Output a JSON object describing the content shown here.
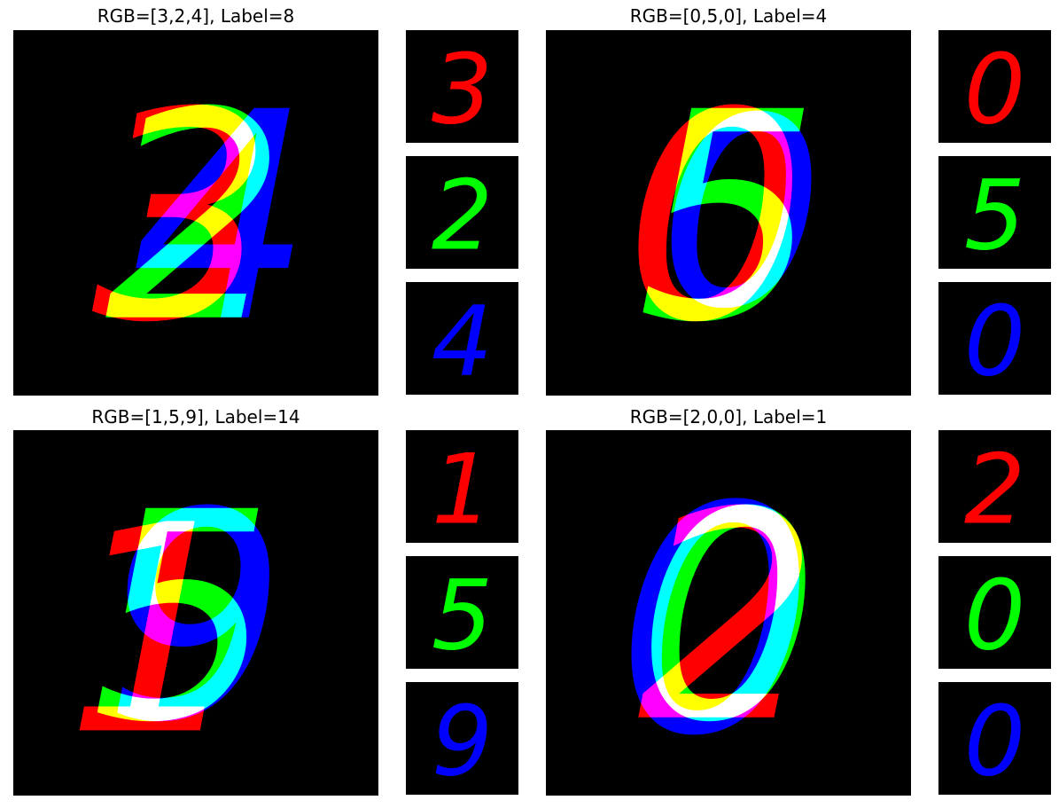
{
  "figure": {
    "panels": [
      {
        "title": "RGB=[3,2,4], Label=8",
        "digits": [
          {
            "value": "3",
            "color": "#ff0000",
            "color_name": "red"
          },
          {
            "value": "2",
            "color": "#00ff00",
            "color_name": "green"
          },
          {
            "value": "4",
            "color": "#0000ff",
            "color_name": "blue"
          }
        ]
      },
      {
        "title": "RGB=[0,5,0], Label=4",
        "digits": [
          {
            "value": "0",
            "color": "#ff0000",
            "color_name": "red"
          },
          {
            "value": "5",
            "color": "#00ff00",
            "color_name": "green"
          },
          {
            "value": "0",
            "color": "#0000ff",
            "color_name": "blue"
          }
        ]
      },
      {
        "title": "RGB=[1,5,9], Label=14",
        "digits": [
          {
            "value": "1",
            "color": "#ff0000",
            "color_name": "red"
          },
          {
            "value": "5",
            "color": "#00ff00",
            "color_name": "green"
          },
          {
            "value": "9",
            "color": "#0000ff",
            "color_name": "blue"
          }
        ]
      },
      {
        "title": "RGB=[2,0,0], Label=1",
        "digits": [
          {
            "value": "2",
            "color": "#ff0000",
            "color_name": "red"
          },
          {
            "value": "0",
            "color": "#00ff00",
            "color_name": "green"
          },
          {
            "value": "0",
            "color": "#0000ff",
            "color_name": "blue"
          }
        ]
      }
    ]
  }
}
